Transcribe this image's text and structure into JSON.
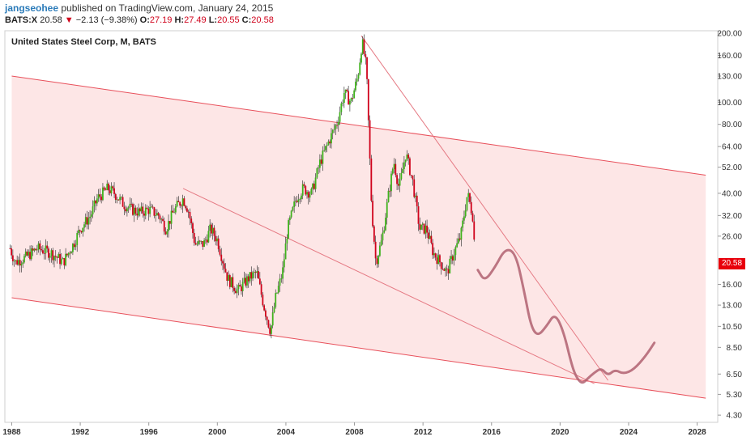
{
  "header": {
    "author": "jangseohee",
    "published_text": "published on TradingView.com, January 24, 2015"
  },
  "quote": {
    "symbol": "BATS:X",
    "last": "20.58",
    "change": "−2.13 (−9.38%)",
    "open_label": "O:",
    "open": "27.19",
    "high_label": "H:",
    "high": "27.49",
    "low_label": "L:",
    "low": "20.55",
    "close_label": "C:",
    "close": "20.58"
  },
  "chart_data": {
    "type": "candlestick",
    "title": "United States Steel Corp, M, BATS",
    "interval": "M",
    "scale": "log",
    "ylim": [
      4.0,
      205.0
    ],
    "xlim": [
      1987.6,
      2029.2
    ],
    "y_ticks": [
      "200.00",
      "160.00",
      "130.00",
      "100.00",
      "80.00",
      "64.00",
      "52.00",
      "40.00",
      "32.00",
      "26.00",
      "16.00",
      "13.00",
      "10.50",
      "8.50",
      "6.50",
      "5.30",
      "4.30"
    ],
    "x_ticks": [
      "1988",
      "1992",
      "1996",
      "2000",
      "2004",
      "2008",
      "2012",
      "2016",
      "2020",
      "2024",
      "2028"
    ],
    "last_price_label": "20.58",
    "colors": {
      "up": "#3fb21c",
      "down": "#d0021b",
      "channel_fill": "#fde2e2",
      "channel_line": "#e8505b",
      "projection": "#b06070"
    },
    "price_keypoints": [
      [
        1987.9,
        23
      ],
      [
        1988.2,
        20
      ],
      [
        1988.8,
        21
      ],
      [
        1989.5,
        23
      ],
      [
        1990.3,
        22
      ],
      [
        1991.0,
        20
      ],
      [
        1991.6,
        24
      ],
      [
        1992.0,
        28
      ],
      [
        1992.6,
        32
      ],
      [
        1993.0,
        38
      ],
      [
        1993.6,
        42
      ],
      [
        1994.0,
        40
      ],
      [
        1994.5,
        36
      ],
      [
        1995.0,
        34
      ],
      [
        1995.5,
        33
      ],
      [
        1996.0,
        34
      ],
      [
        1996.6,
        32
      ],
      [
        1997.0,
        28
      ],
      [
        1997.5,
        34
      ],
      [
        1998.0,
        38
      ],
      [
        1998.3,
        34
      ],
      [
        1998.7,
        24
      ],
      [
        1999.2,
        24
      ],
      [
        1999.6,
        28
      ],
      [
        2000.0,
        25
      ],
      [
        2000.6,
        17
      ],
      [
        2001.2,
        15
      ],
      [
        2001.8,
        17
      ],
      [
        2002.3,
        18
      ],
      [
        2002.7,
        13
      ],
      [
        2003.1,
        10
      ],
      [
        2003.4,
        14
      ],
      [
        2003.8,
        18
      ],
      [
        2004.1,
        28
      ],
      [
        2004.6,
        38
      ],
      [
        2005.0,
        42
      ],
      [
        2005.5,
        40
      ],
      [
        2006.0,
        55
      ],
      [
        2006.6,
        70
      ],
      [
        2007.0,
        82
      ],
      [
        2007.4,
        110
      ],
      [
        2007.8,
        100
      ],
      [
        2008.2,
        130
      ],
      [
        2008.45,
        185
      ],
      [
        2008.7,
        140
      ],
      [
        2009.0,
        35
      ],
      [
        2009.25,
        20
      ],
      [
        2009.6,
        25
      ],
      [
        2010.0,
        40
      ],
      [
        2010.3,
        55
      ],
      [
        2010.6,
        42
      ],
      [
        2011.0,
        60
      ],
      [
        2011.4,
        45
      ],
      [
        2011.8,
        28
      ],
      [
        2012.2,
        28
      ],
      [
        2012.6,
        22
      ],
      [
        2013.0,
        20
      ],
      [
        2013.4,
        18
      ],
      [
        2013.8,
        22
      ],
      [
        2014.2,
        26
      ],
      [
        2014.6,
        40
      ],
      [
        2014.9,
        32
      ],
      [
        2015.05,
        20.58
      ]
    ],
    "channel_upper": [
      [
        1988.0,
        130
      ],
      [
        2028.5,
        48
      ]
    ],
    "channel_lower": [
      [
        1988.0,
        14
      ],
      [
        2028.5,
        5.1
      ]
    ],
    "trendline_from_peak": [
      [
        2008.4,
        195
      ],
      [
        2022.8,
        6.1
      ]
    ],
    "trendline_from_1998": [
      [
        1998.0,
        42
      ],
      [
        2022.0,
        5.9
      ]
    ],
    "projection_path": [
      [
        2015.2,
        18.5
      ],
      [
        2015.6,
        16.5
      ],
      [
        2016.2,
        19
      ],
      [
        2016.8,
        23
      ],
      [
        2017.4,
        22
      ],
      [
        2017.9,
        15
      ],
      [
        2018.3,
        10.5
      ],
      [
        2018.7,
        9.5
      ],
      [
        2019.2,
        10.5
      ],
      [
        2019.7,
        12
      ],
      [
        2020.2,
        10
      ],
      [
        2020.7,
        7
      ],
      [
        2021.0,
        6.2
      ],
      [
        2021.3,
        5.9
      ],
      [
        2021.6,
        6.2
      ],
      [
        2022.0,
        6.6
      ],
      [
        2022.4,
        6.9
      ],
      [
        2022.8,
        6.4
      ],
      [
        2023.2,
        6.8
      ],
      [
        2023.7,
        6.5
      ],
      [
        2024.3,
        6.8
      ],
      [
        2025.0,
        7.8
      ],
      [
        2025.5,
        8.9
      ]
    ]
  }
}
